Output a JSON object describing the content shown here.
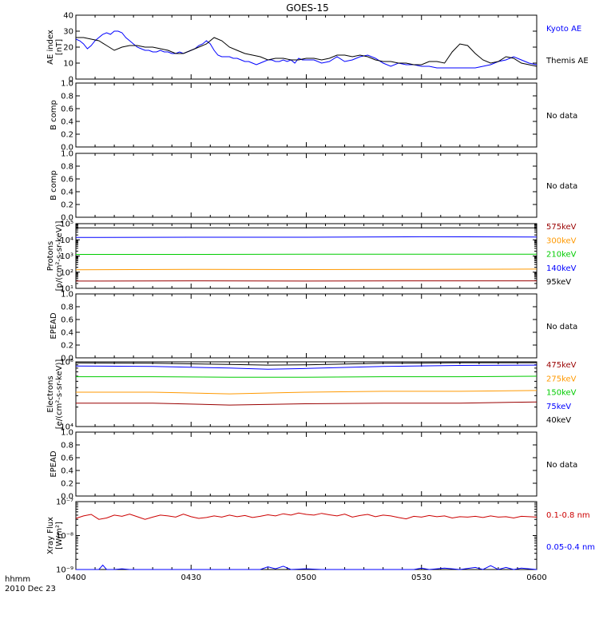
{
  "title": "GOES-15",
  "footer": {
    "line1": "hhmm",
    "line2": "2010 Dec 23"
  },
  "colors": {
    "black": "#000000",
    "blue": "#0000ff",
    "red": "#cc0000",
    "orange": "#ff9900",
    "green": "#00cc00",
    "dark_red": "#990000",
    "crimson": "#cc0000"
  },
  "chart_data": [
    {
      "type": "line",
      "ylabel": [
        "AE index",
        "[nT]"
      ],
      "ylim": [
        0,
        40
      ],
      "yticks": [
        0,
        10,
        20,
        30,
        40
      ],
      "ytick_labels": [
        "0",
        "10",
        "20",
        "30",
        "40"
      ],
      "legend": [
        {
          "name": "Kyoto AE",
          "color": "#0000ff"
        },
        {
          "name": "Themis AE",
          "color": "#000000"
        }
      ],
      "series": [
        {
          "name": "Kyoto AE",
          "color": "#0000ff",
          "x": [
            0,
            1,
            2,
            3,
            4,
            5,
            6,
            7,
            8,
            9,
            10,
            11,
            12,
            13,
            14,
            15,
            16,
            17,
            18,
            19,
            20,
            21,
            22,
            23,
            24,
            25,
            26,
            27,
            28,
            29,
            30,
            31,
            32,
            33,
            34,
            35,
            36,
            37,
            38,
            39,
            40,
            41,
            42,
            43,
            44,
            45,
            46,
            47,
            48,
            49,
            50,
            51,
            52,
            53,
            54,
            55,
            56,
            57,
            58,
            59,
            60,
            62,
            64,
            66,
            68,
            70,
            72,
            74,
            76,
            78,
            80,
            82,
            84,
            86,
            88,
            90,
            92,
            94,
            96,
            98,
            100,
            102,
            104,
            106,
            108,
            110,
            112,
            114,
            116,
            118,
            120
          ],
          "values": [
            25,
            24,
            22,
            19,
            21,
            24,
            26,
            28,
            29,
            28,
            30,
            30,
            29,
            26,
            24,
            22,
            20,
            19,
            18,
            18,
            17,
            17,
            18,
            17,
            17,
            16,
            16,
            17,
            16,
            17,
            18,
            19,
            21,
            22,
            24,
            22,
            18,
            15,
            14,
            14,
            14,
            13,
            13,
            12,
            11,
            11,
            10,
            9,
            10,
            11,
            12,
            12,
            11,
            11,
            12,
            11,
            12,
            10,
            13,
            12,
            12,
            12,
            10,
            11,
            14,
            11,
            12,
            14,
            15,
            13,
            10,
            8,
            10,
            9,
            9,
            8,
            8,
            7,
            7,
            7,
            7,
            7,
            7,
            8,
            9,
            11,
            12,
            14,
            12,
            10,
            9
          ]
        },
        {
          "name": "Themis AE",
          "color": "#000000",
          "x": [
            0,
            2,
            4,
            6,
            8,
            10,
            12,
            14,
            16,
            18,
            20,
            22,
            24,
            26,
            28,
            30,
            32,
            34,
            36,
            38,
            40,
            42,
            44,
            46,
            48,
            50,
            52,
            54,
            56,
            58,
            60,
            62,
            64,
            66,
            68,
            70,
            72,
            74,
            76,
            78,
            80,
            82,
            84,
            86,
            88,
            90,
            92,
            94,
            96,
            98,
            100,
            102,
            104,
            106,
            108,
            110,
            112,
            114,
            116,
            118,
            120
          ],
          "values": [
            26,
            26,
            25,
            24,
            21,
            18,
            20,
            21,
            21,
            20,
            20,
            19,
            18,
            16,
            16,
            18,
            20,
            22,
            26,
            24,
            20,
            18,
            16,
            15,
            14,
            12,
            13,
            13,
            12,
            12,
            13,
            13,
            12,
            13,
            15,
            15,
            14,
            15,
            14,
            12,
            11,
            11,
            10,
            10,
            9,
            9,
            11,
            11,
            10,
            17,
            22,
            21,
            16,
            12,
            10,
            11,
            14,
            13,
            10,
            9,
            8
          ]
        }
      ]
    },
    {
      "type": "line",
      "ylabel": [
        "B comp"
      ],
      "ylim": [
        0,
        1
      ],
      "yticks": [
        0,
        0.2,
        0.4,
        0.6,
        0.8,
        1.0
      ],
      "ytick_labels": [
        "0.0",
        "0.2",
        "0.4",
        "0.6",
        "0.8",
        "1.0"
      ],
      "legend": [
        {
          "name": "No data",
          "color": "#000000"
        }
      ],
      "series": []
    },
    {
      "type": "line",
      "ylabel": [
        "B comp"
      ],
      "ylim": [
        0,
        1
      ],
      "yticks": [
        0,
        0.2,
        0.4,
        0.6,
        0.8,
        1.0
      ],
      "ytick_labels": [
        "0.0",
        "0.2",
        "0.4",
        "0.6",
        "0.8",
        "1.0"
      ],
      "legend": [
        {
          "name": "No data",
          "color": "#000000"
        }
      ],
      "series": []
    },
    {
      "type": "line",
      "log": true,
      "ylabel": [
        "Protons",
        "[p/(cm²-s-sr-keV)]"
      ],
      "ylim": [
        10,
        100000
      ],
      "yticks": [
        10,
        100,
        1000,
        10000,
        100000
      ],
      "ytick_labels": [
        "10¹",
        "10²",
        "10³",
        "10⁴",
        "10⁵"
      ],
      "legend": [
        {
          "name": "575keV",
          "color": "#990000"
        },
        {
          "name": "300keV",
          "color": "#ff9900"
        },
        {
          "name": "210keV",
          "color": "#00cc00"
        },
        {
          "name": "140keV",
          "color": "#0000ff"
        },
        {
          "name": "95keV",
          "color": "#000000"
        }
      ],
      "series": [
        {
          "name": "95keV",
          "color": "#000000",
          "x": [
            0,
            120
          ],
          "values": [
            55000,
            55000
          ]
        },
        {
          "name": "140keV",
          "color": "#0000ff",
          "x": [
            0,
            30,
            60,
            90,
            120
          ],
          "values": [
            14000,
            14500,
            14500,
            15500,
            15000
          ]
        },
        {
          "name": "210keV",
          "color": "#00cc00",
          "x": [
            0,
            30,
            60,
            90,
            120
          ],
          "values": [
            1250,
            1250,
            1300,
            1300,
            1300
          ]
        },
        {
          "name": "300keV",
          "color": "#ff9900",
          "x": [
            0,
            30,
            60,
            90,
            120
          ],
          "values": [
            140,
            150,
            145,
            150,
            155
          ]
        },
        {
          "name": "575keV",
          "color": "#990000",
          "x": [
            0,
            30,
            60,
            90,
            120
          ],
          "values": [
            28,
            29,
            28,
            29,
            29
          ]
        }
      ]
    },
    {
      "type": "line",
      "ylabel": [
        "EPEAD"
      ],
      "ylim": [
        0,
        1
      ],
      "yticks": [
        0,
        0.2,
        0.4,
        0.6,
        0.8,
        1.0
      ],
      "ytick_labels": [
        "0.0",
        "0.2",
        "0.4",
        "0.6",
        "0.8",
        "1.0"
      ],
      "legend": [
        {
          "name": "No data",
          "color": "#000000"
        }
      ],
      "series": []
    },
    {
      "type": "line",
      "log": true,
      "ylabel": [
        "Electrons",
        "[e/(cm²-s-sr-keV)]"
      ],
      "ylim": [
        10000,
        100000
      ],
      "yticks": [
        10000,
        100000
      ],
      "ytick_labels": [
        "10⁴",
        "10⁵"
      ],
      "legend": [
        {
          "name": "475keV",
          "color": "#990000"
        },
        {
          "name": "275keV",
          "color": "#ff9900"
        },
        {
          "name": "150keV",
          "color": "#00cc00"
        },
        {
          "name": "75keV",
          "color": "#0000ff"
        },
        {
          "name": "40keV",
          "color": "#000000"
        }
      ],
      "series": [
        {
          "name": "40keV",
          "color": "#000000",
          "x": [
            0,
            20,
            40,
            50,
            60,
            80,
            100,
            120
          ],
          "values": [
            96000,
            95000,
            91000,
            89000,
            90000,
            95000,
            97000,
            97000
          ]
        },
        {
          "name": "75keV",
          "color": "#0000ff",
          "x": [
            0,
            20,
            40,
            50,
            60,
            80,
            100,
            120
          ],
          "values": [
            86000,
            85000,
            80000,
            77000,
            79000,
            85000,
            88000,
            89000
          ]
        },
        {
          "name": "150keV",
          "color": "#00cc00",
          "x": [
            0,
            20,
            40,
            60,
            80,
            100,
            120
          ],
          "values": [
            59000,
            59000,
            58000,
            58000,
            59000,
            59000,
            60000
          ]
        },
        {
          "name": "275keV",
          "color": "#ff9900",
          "x": [
            0,
            20,
            40,
            60,
            80,
            100,
            120
          ],
          "values": [
            34000,
            34000,
            32000,
            34000,
            35000,
            35000,
            36000
          ]
        },
        {
          "name": "475keV",
          "color": "#990000",
          "x": [
            0,
            20,
            40,
            60,
            80,
            100,
            120
          ],
          "values": [
            23000,
            23000,
            21500,
            22500,
            23000,
            23000,
            24000
          ]
        }
      ]
    },
    {
      "type": "line",
      "ylabel": [
        "EPEAD"
      ],
      "ylim": [
        0,
        1
      ],
      "yticks": [
        0,
        0.2,
        0.4,
        0.6,
        0.8,
        1.0
      ],
      "ytick_labels": [
        "0.0",
        "0.2",
        "0.4",
        "0.6",
        "0.8",
        "1.0"
      ],
      "legend": [
        {
          "name": "No data",
          "color": "#000000"
        }
      ],
      "series": []
    },
    {
      "type": "line",
      "log": true,
      "ylabel": [
        "Xray Flux",
        "[W/m²]"
      ],
      "ylim": [
        1e-09,
        1e-07
      ],
      "yticks": [
        1e-09,
        1e-08,
        1e-07
      ],
      "ytick_labels": [
        "10⁻⁹",
        "10⁻⁸",
        "10⁻⁷"
      ],
      "legend": [
        {
          "name": "0.1-0.8 nm",
          "color": "#cc0000"
        },
        {
          "name": "0.05-0.4 nm",
          "color": "#0000ff"
        }
      ],
      "series": [
        {
          "name": "0.1-0.8 nm",
          "color": "#cc0000",
          "x": [
            0,
            2,
            4,
            6,
            8,
            10,
            12,
            14,
            16,
            18,
            20,
            22,
            24,
            26,
            28,
            30,
            32,
            34,
            36,
            38,
            40,
            42,
            44,
            46,
            48,
            50,
            52,
            54,
            56,
            58,
            60,
            62,
            64,
            66,
            68,
            70,
            72,
            74,
            76,
            78,
            80,
            82,
            84,
            86,
            88,
            90,
            92,
            94,
            96,
            98,
            100,
            102,
            104,
            106,
            108,
            110,
            112,
            114,
            116,
            118,
            120
          ],
          "values": [
            3.2e-08,
            3.8e-08,
            4.2e-08,
            3e-08,
            3.3e-08,
            4e-08,
            3.7e-08,
            4.3e-08,
            3.6e-08,
            3e-08,
            3.5e-08,
            4e-08,
            3.8e-08,
            3.5e-08,
            4.3e-08,
            3.6e-08,
            3.2e-08,
            3.4e-08,
            3.8e-08,
            3.5e-08,
            4e-08,
            3.6e-08,
            3.9e-08,
            3.4e-08,
            3.7e-08,
            4.1e-08,
            3.8e-08,
            4.4e-08,
            4e-08,
            4.6e-08,
            4.2e-08,
            4e-08,
            4.5e-08,
            4.1e-08,
            3.8e-08,
            4.3e-08,
            3.5e-08,
            3.9e-08,
            4.2e-08,
            3.6e-08,
            4e-08,
            3.8e-08,
            3.4e-08,
            3.1e-08,
            3.7e-08,
            3.5e-08,
            3.9e-08,
            3.6e-08,
            3.8e-08,
            3.3e-08,
            3.6e-08,
            3.5e-08,
            3.7e-08,
            3.4e-08,
            3.8e-08,
            3.5e-08,
            3.6e-08,
            3.3e-08,
            3.7e-08,
            3.6e-08,
            3.5e-08
          ]
        },
        {
          "name": "0.05-0.4 nm",
          "color": "#0000ff",
          "x": [
            0,
            4,
            6,
            7,
            8,
            10,
            12,
            14,
            20,
            30,
            40,
            48,
            50,
            52,
            54,
            56,
            60,
            64,
            70,
            80,
            88,
            90,
            92,
            96,
            100,
            104,
            106,
            108,
            110,
            112,
            114,
            116,
            118,
            120
          ],
          "values": [
            1e-09,
            1e-09,
            1e-09,
            1.35e-09,
            1e-09,
            1e-09,
            1.05e-09,
            1e-09,
            1e-09,
            1e-09,
            1e-09,
            1e-09,
            1.2e-09,
            1.05e-09,
            1.25e-09,
            1e-09,
            1.05e-09,
            1e-09,
            1e-09,
            1e-09,
            1e-09,
            1.1e-09,
            1e-09,
            1.1e-09,
            1e-09,
            1.15e-09,
            1e-09,
            1.3e-09,
            1e-09,
            1.15e-09,
            1e-09,
            1.1e-09,
            1.05e-09,
            1e-09
          ]
        }
      ]
    }
  ],
  "xaxis": {
    "xlim": [
      0,
      120
    ],
    "major_ticks": [
      0,
      30,
      60,
      90,
      120
    ],
    "labels": [
      "0400",
      "0430",
      "0500",
      "0530",
      "0600"
    ]
  }
}
